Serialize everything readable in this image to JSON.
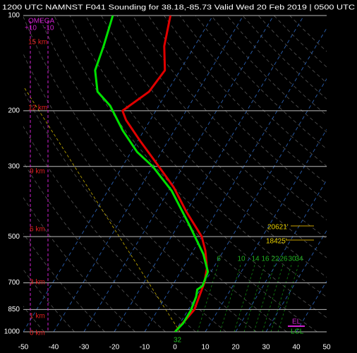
{
  "chart_data": {
    "type": "skew-t",
    "title": "1200 UTC NAMNST F041 Sounding for 38.18,-85.73 Valid  Wed 20 Feb 2019 | 0500 UTC",
    "ylim": [
      1000,
      100
    ],
    "yticks": [
      100,
      200,
      300,
      500,
      700,
      850,
      1000
    ],
    "y_log": true,
    "xlim": [
      -50,
      50
    ],
    "xticks": [
      -50,
      -40,
      -30,
      -20,
      -10,
      0,
      10,
      20,
      30,
      40,
      50
    ],
    "grid": true,
    "series": [
      {
        "color": "#e00000",
        "pressure": [
          100,
          125,
          149,
          174,
          200,
          214,
          250,
          300,
          349,
          417,
          500,
          554,
          630,
          700,
          773,
          850,
          926,
          1000
        ],
        "values": [
          -64,
          -60,
          -55,
          -56,
          -61,
          -58,
          -49,
          -38,
          -29,
          -20,
          -10,
          -6,
          -2,
          0,
          1,
          2,
          1,
          0
        ]
      },
      {
        "color": "#00e000",
        "pressure": [
          100,
          125,
          149,
          174,
          193,
          231,
          270,
          300,
          358,
          463,
          568,
          646,
          716,
          735,
          773,
          857,
          940,
          1000
        ],
        "values": [
          -83,
          -80,
          -78,
          -73,
          -66,
          -57,
          -48,
          -40,
          -29,
          -16,
          -6,
          -1,
          0,
          -1,
          0,
          1,
          1,
          0
        ]
      }
    ],
    "omega_panel": {
      "title": "OMEGA",
      "labels": [
        "+10",
        "-10"
      ]
    },
    "height_labels": [
      "15 km",
      "12 km",
      "9 km",
      "6 km",
      "3 km",
      "1 km",
      "0 km"
    ],
    "annotations": [
      "20621'",
      "18425'",
      "EL",
      "LCL",
      "32"
    ],
    "mixing_ratio_labels": [
      "6",
      "10",
      "14",
      "16",
      "22",
      "26",
      "30",
      "34"
    ]
  }
}
